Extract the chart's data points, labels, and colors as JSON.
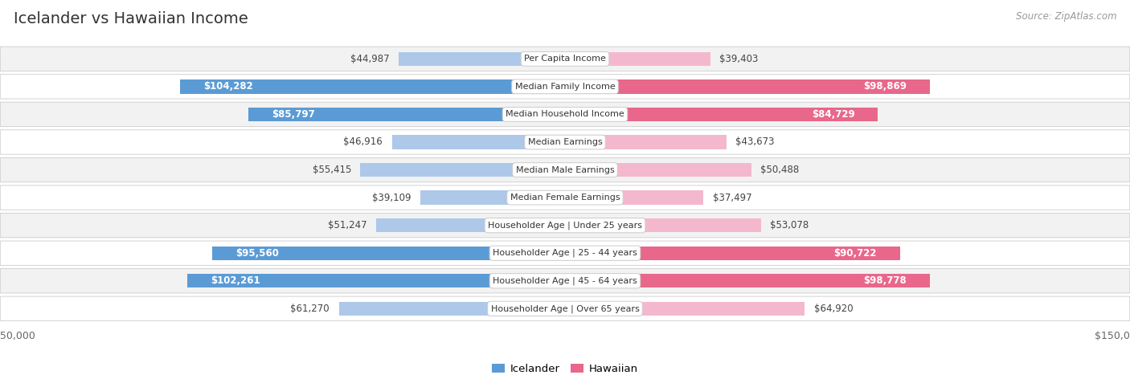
{
  "title": "Icelander vs Hawaiian Income",
  "source": "Source: ZipAtlas.com",
  "categories": [
    "Per Capita Income",
    "Median Family Income",
    "Median Household Income",
    "Median Earnings",
    "Median Male Earnings",
    "Median Female Earnings",
    "Householder Age | Under 25 years",
    "Householder Age | 25 - 44 years",
    "Householder Age | 45 - 64 years",
    "Householder Age | Over 65 years"
  ],
  "icelander_values": [
    44987,
    104282,
    85797,
    46916,
    55415,
    39109,
    51247,
    95560,
    102261,
    61270
  ],
  "hawaiian_values": [
    39403,
    98869,
    84729,
    43673,
    50488,
    37497,
    53078,
    90722,
    98778,
    64920
  ],
  "icelander_labels": [
    "$44,987",
    "$104,282",
    "$85,797",
    "$46,916",
    "$55,415",
    "$39,109",
    "$51,247",
    "$95,560",
    "$102,261",
    "$61,270"
  ],
  "hawaiian_labels": [
    "$39,403",
    "$98,869",
    "$84,729",
    "$43,673",
    "$50,488",
    "$37,497",
    "$53,078",
    "$90,722",
    "$98,778",
    "$64,920"
  ],
  "max_value": 150000,
  "icelander_color_light": "#adc8e8",
  "icelander_color_dark": "#5b9bd5",
  "hawaiian_color_light": "#f4b8ce",
  "hawaiian_color_dark": "#e8678a",
  "row_colors": [
    "#f2f2f2",
    "#ffffff",
    "#f2f2f2",
    "#ffffff",
    "#f2f2f2",
    "#ffffff",
    "#f2f2f2",
    "#ffffff",
    "#f2f2f2",
    "#ffffff"
  ],
  "bar_height": 0.5,
  "dark_threshold": 65000,
  "label_fontsize": 8.5,
  "cat_fontsize": 8.0,
  "title_fontsize": 14,
  "source_fontsize": 8.5
}
